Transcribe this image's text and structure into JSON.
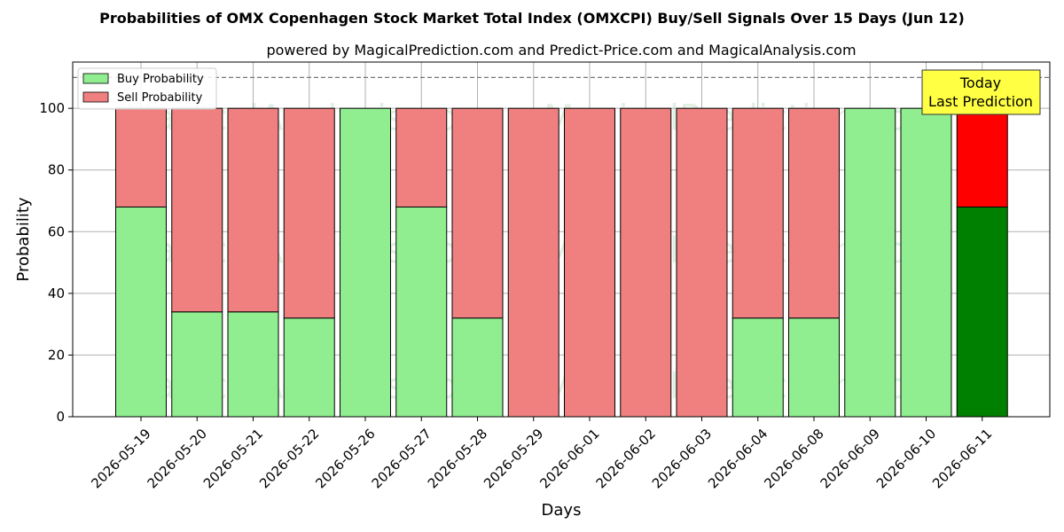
{
  "chart_data": {
    "type": "bar",
    "stacked": true,
    "title": "Probabilities of OMX Copenhagen Stock Market Total Index (OMXCPI) Buy/Sell Signals Over 15 Days (Jun 12)",
    "subtitle": "powered by MagicalPrediction.com and Predict-Price.com and MagicalAnalysis.com",
    "xlabel": "Days",
    "ylabel": "Probability",
    "ylim": [
      0,
      115
    ],
    "yticks": [
      0,
      20,
      40,
      60,
      80,
      100
    ],
    "reference_line": 110,
    "grid": true,
    "legend_position": "top-left",
    "categories": [
      "2026-05-19",
      "2026-05-20",
      "2026-05-21",
      "2026-05-22",
      "2026-05-26",
      "2026-05-27",
      "2026-05-28",
      "2026-05-29",
      "2026-06-01",
      "2026-06-02",
      "2026-06-03",
      "2026-06-04",
      "2026-06-08",
      "2026-06-09",
      "2026-06-10",
      "2026-06-11"
    ],
    "series": [
      {
        "name": "Buy Probability",
        "values": [
          68,
          34,
          34,
          32,
          100,
          68,
          32,
          0,
          0,
          0,
          0,
          32,
          32,
          100,
          100,
          68
        ],
        "color": "#90ee90",
        "highlight_color": "#008000"
      },
      {
        "name": "Sell Probability",
        "values": [
          32,
          66,
          66,
          68,
          0,
          32,
          68,
          100,
          100,
          100,
          100,
          68,
          68,
          0,
          0,
          32
        ],
        "color": "#f08080",
        "highlight_color": "#ff0000"
      }
    ],
    "highlight_index": 15,
    "annotation": {
      "line1": "Today",
      "line2": "Last Prediction",
      "background": "#ffff44"
    },
    "watermark": [
      "MagicalAnalysis.com",
      "MagicalPrediction.com"
    ]
  }
}
